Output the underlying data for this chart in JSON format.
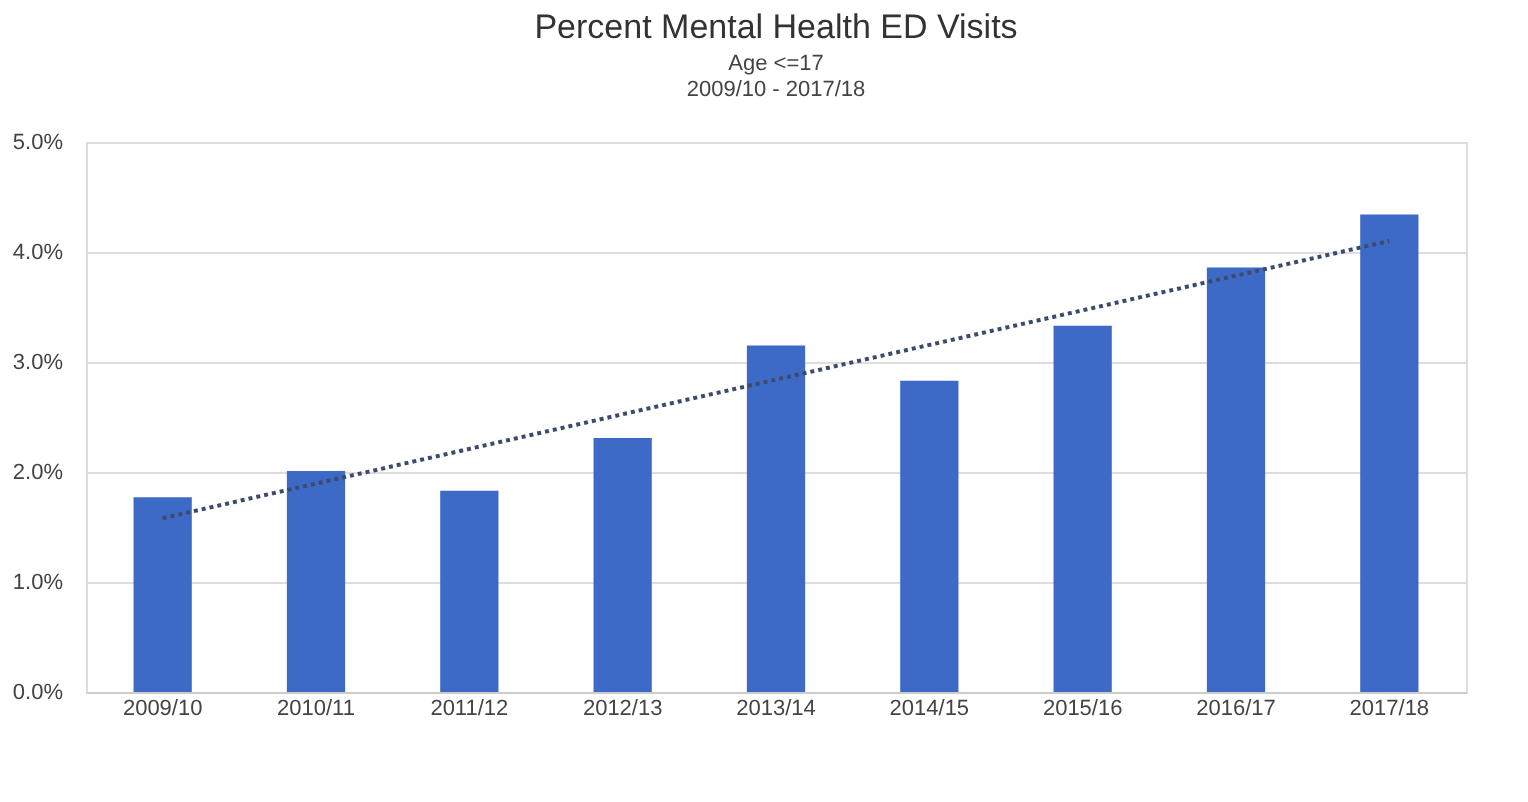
{
  "chart_data": {
    "type": "bar",
    "title": "Percent Mental Health ED Visits",
    "subtitle": [
      "Age <=17",
      "2009/10 - 2017/18"
    ],
    "categories": [
      "2009/10",
      "2010/11",
      "2011/12",
      "2012/13",
      "2013/14",
      "2014/15",
      "2015/16",
      "2016/17",
      "2017/18"
    ],
    "series": [
      {
        "color": "#3d6ac6",
        "values": [
          1.77,
          2.01,
          1.83,
          2.31,
          3.15,
          2.83,
          3.33,
          3.86,
          4.34
        ]
      },
      {
        "type": "line",
        "color": "#3c4a6e",
        "line_style": "dotted",
        "x": [
          "2009/10",
          "2017/18"
        ],
        "values": [
          1.58,
          4.1
        ]
      }
    ],
    "ylim": [
      0,
      5
    ],
    "yticks": [
      {
        "value": 0,
        "label": "0.0%"
      },
      {
        "value": 1,
        "label": "1.0%"
      },
      {
        "value": 2,
        "label": "2.0%"
      },
      {
        "value": 3,
        "label": "3.0%"
      },
      {
        "value": 4,
        "label": "4.0%"
      },
      {
        "value": 5,
        "label": "5.0%"
      }
    ],
    "grid": "y"
  }
}
